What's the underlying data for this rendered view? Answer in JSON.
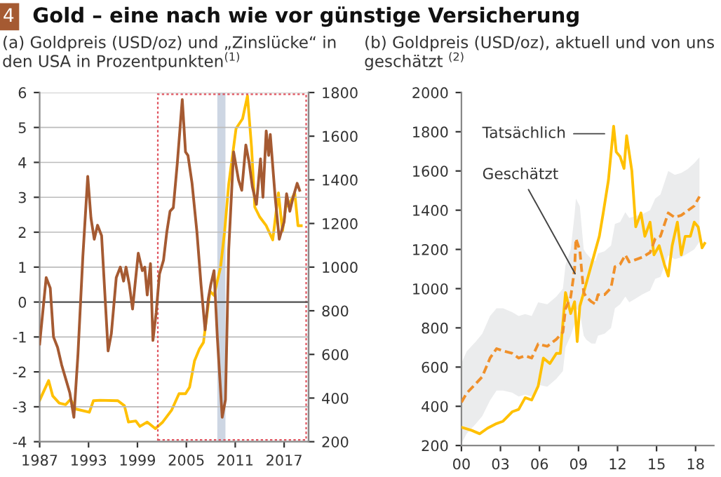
{
  "chart_data": [
    {
      "type": "line",
      "title": "Gold – eine nach wie vor günstige Versicherung",
      "subtitle": "(a) Goldpreis (USD/oz) und „Zinslücke“ in den USA in Prozentpunkten$^{(1)}$",
      "annotations": [
        "4"
      ],
      "xlim": [
        1987,
        2020
      ],
      "xticks": [
        1987,
        1993,
        1999,
        2005,
        2011,
        2017
      ],
      "ylim": [
        -4,
        6
      ],
      "yticks": [
        -4,
        -3,
        -2,
        -1,
        0,
        1,
        2,
        3,
        4,
        5,
        6
      ],
      "y2lim": [
        200,
        1800
      ],
      "y2ticks": [
        200,
        400,
        600,
        800,
        1000,
        1200,
        1400,
        1600,
        1800
      ],
      "grid": "y",
      "ref_lines": [
        {
          "axis": "y",
          "value": 0,
          "color": "#555555"
        }
      ],
      "bands": [
        {
          "axis": "x",
          "from": 2008.8,
          "to": 2009.8,
          "color": "#cdd6e3"
        }
      ],
      "series": [
        {
          "color": "#a55a32",
          "axis": "y",
          "x": [
            1987.0,
            1987.8,
            1988.3,
            1988.7,
            1989.2,
            1989.7,
            1990.2,
            1990.7,
            1991.2,
            1991.7,
            1992.3,
            1992.9,
            1993.3,
            1993.7,
            1994.1,
            1994.6,
            1995.4,
            1995.8,
            1996.4,
            1996.9,
            1997.3,
            1997.6,
            1998.0,
            1998.4,
            1999.1,
            1999.6,
            1999.9,
            2000.2,
            2000.6,
            2000.9,
            2001.3,
            2001.7,
            2002.2,
            2002.6,
            2003.0,
            2003.4,
            2003.9,
            2004.5,
            2004.9,
            2005.2,
            2005.7,
            2006.3,
            2006.8,
            2007.3,
            2007.7,
            2008.0,
            2008.4,
            2008.8,
            2009.4,
            2009.8,
            2010.2,
            2010.8,
            2011.4,
            2011.8,
            2012.3,
            2012.7,
            2013.1,
            2013.6,
            2014.1,
            2014.4,
            2014.8,
            2015.1,
            2015.3,
            2015.9,
            2016.4,
            2017.0,
            2017.3,
            2017.7,
            2018.1,
            2018.6,
            2018.9
          ],
          "values": [
            -1.2,
            0.7,
            0.4,
            -1.0,
            -1.3,
            -1.8,
            -2.2,
            -2.6,
            -3.3,
            -1.5,
            1.3,
            3.6,
            2.4,
            1.8,
            2.2,
            1.9,
            -1.4,
            -0.9,
            0.7,
            1.0,
            0.6,
            1.0,
            0.5,
            -0.2,
            1.4,
            0.9,
            1.0,
            0.2,
            1.1,
            -1.1,
            -0.3,
            0.8,
            1.2,
            2.0,
            2.6,
            2.7,
            4.0,
            5.8,
            4.3,
            4.2,
            3.4,
            2.0,
            0.5,
            -0.8,
            0.1,
            0.5,
            0.9,
            -1.0,
            -3.3,
            -2.8,
            1.5,
            4.3,
            3.5,
            3.2,
            4.5,
            4.0,
            3.3,
            2.8,
            4.1,
            3.0,
            4.9,
            4.2,
            4.8,
            3.0,
            1.8,
            2.3,
            3.1,
            2.6,
            3.0,
            3.4,
            3.2
          ]
        },
        {
          "color": "#ffc000",
          "axis": "y2",
          "x": [
            1987.0,
            1988.1,
            1988.6,
            1989.4,
            1990.2,
            1990.8,
            1991.4,
            1993.1,
            1993.6,
            1994.4,
            1996.6,
            1997.4,
            1997.9,
            1998.8,
            1999.3,
            2000.2,
            2001.2,
            2002.1,
            2003.2,
            2004.1,
            2004.9,
            2005.4,
            2006.0,
            2006.6,
            2007.1,
            2007.9,
            2008.4,
            2008.7,
            2009.2,
            2009.7,
            2010.2,
            2011.1,
            2011.9,
            2012.5,
            2013.0,
            2013.4,
            2014.0,
            2014.8,
            2015.6,
            2016.3,
            2016.8,
            2017.2,
            2017.7,
            2018.3,
            2018.7,
            2019.1
          ],
          "values": [
            390,
            480,
            410,
            377,
            370,
            395,
            350,
            335,
            388,
            390,
            388,
            365,
            290,
            295,
            270,
            290,
            260,
            290,
            345,
            420,
            420,
            450,
            570,
            625,
            655,
            890,
            870,
            920,
            1000,
            1165,
            1380,
            1635,
            1680,
            1785,
            1550,
            1275,
            1230,
            1190,
            1125,
            1340,
            1165,
            1275,
            1295,
            1340,
            1190,
            1190
          ]
        }
      ]
    },
    {
      "type": "line",
      "title": "(b) Goldpreis (USD/oz), aktuell und von uns geschätzt $^{(2)}$",
      "xlim": [
        2000,
        2019.4
      ],
      "xticks": [
        {
          "value": 2000,
          "label": "00"
        },
        {
          "value": 2003,
          "label": "03"
        },
        {
          "value": 2006,
          "label": "06"
        },
        {
          "value": 2009,
          "label": "09"
        },
        {
          "value": 2012,
          "label": "12"
        },
        {
          "value": 2015,
          "label": "15"
        },
        {
          "value": 2018,
          "label": "18"
        }
      ],
      "ylim": [
        200,
        2000
      ],
      "yticks": [
        200,
        400,
        600,
        800,
        1000,
        1200,
        1400,
        1600,
        1800,
        2000
      ],
      "annotations": [
        {
          "text": "Tatsächlich",
          "x": 2011.0,
          "y": 1790
        },
        {
          "text": "Geschätzt",
          "x": 2008.74,
          "y": 1076
        }
      ],
      "series": [
        {
          "color": "#ffc000",
          "line_style": "solid",
          "x": [
            2000.0,
            2000.8,
            2001.4,
            2002.0,
            2002.7,
            2003.2,
            2003.9,
            2004.4,
            2004.9,
            2005.4,
            2005.9,
            2006.3,
            2006.8,
            2007.3,
            2007.6,
            2008.0,
            2008.4,
            2008.7,
            2008.9,
            2009.1,
            2009.4,
            2009.8,
            2010.2,
            2010.6,
            2010.9,
            2011.3,
            2011.7,
            2011.9,
            2012.2,
            2012.5,
            2012.7,
            2013.1,
            2013.4,
            2013.8,
            2014.1,
            2014.5,
            2014.8,
            2015.2,
            2015.6,
            2015.9,
            2016.2,
            2016.6,
            2016.9,
            2017.2,
            2017.6,
            2017.9,
            2018.2,
            2018.5,
            2018.7
          ],
          "values": [
            293,
            277,
            260,
            288,
            312,
            324,
            372,
            384,
            444,
            432,
            503,
            646,
            618,
            670,
            670,
            980,
            873,
            933,
            730,
            910,
            980,
            1076,
            1172,
            1267,
            1386,
            1553,
            1828,
            1697,
            1673,
            1613,
            1780,
            1601,
            1315,
            1386,
            1267,
            1339,
            1172,
            1219,
            1124,
            1064,
            1219,
            1339,
            1172,
            1267,
            1267,
            1339,
            1315,
            1208,
            1231
          ]
        },
        {
          "color": "#f0902a",
          "line_style": "dashed",
          "x": [
            2000.0,
            2000.4,
            2001.1,
            2001.6,
            2002.2,
            2002.7,
            2003.2,
            2003.9,
            2004.4,
            2004.9,
            2005.4,
            2005.9,
            2006.6,
            2007.3,
            2007.8,
            2008.0,
            2008.4,
            2008.7,
            2008.8,
            2009.1,
            2009.4,
            2009.6,
            2010.0,
            2010.3,
            2010.5,
            2011.0,
            2011.5,
            2011.8,
            2012.2,
            2012.6,
            2012.9,
            2013.4,
            2013.9,
            2014.5,
            2014.9,
            2015.3,
            2015.9,
            2016.4,
            2016.9,
            2017.4,
            2017.9,
            2018.3
          ],
          "values": [
            420,
            467,
            515,
            551,
            646,
            694,
            683,
            670,
            646,
            658,
            646,
            718,
            706,
            742,
            778,
            897,
            957,
            1100,
            1255,
            1196,
            980,
            957,
            933,
            921,
            969,
            969,
            1004,
            1112,
            1124,
            1172,
            1136,
            1148,
            1160,
            1184,
            1255,
            1267,
            1386,
            1363,
            1374,
            1398,
            1422,
            1470
          ],
          "lower": [
            210,
            260,
            310,
            350,
            430,
            480,
            480,
            470,
            450,
            460,
            450,
            510,
            500,
            540,
            580,
            700,
            760,
            820,
            900,
            880,
            760,
            740,
            720,
            720,
            760,
            770,
            800,
            900,
            920,
            960,
            930,
            950,
            970,
            990,
            1050,
            1060,
            1170,
            1150,
            1160,
            1180,
            1200,
            1240
          ],
          "upper": [
            620,
            680,
            730,
            770,
            860,
            900,
            900,
            880,
            860,
            870,
            860,
            930,
            920,
            960,
            1000,
            1120,
            1200,
            1380,
            1460,
            1420,
            1200,
            1180,
            1150,
            1140,
            1180,
            1190,
            1220,
            1330,
            1340,
            1390,
            1360,
            1370,
            1380,
            1400,
            1460,
            1480,
            1600,
            1580,
            1590,
            1610,
            1640,
            1670
          ]
        }
      ]
    }
  ]
}
